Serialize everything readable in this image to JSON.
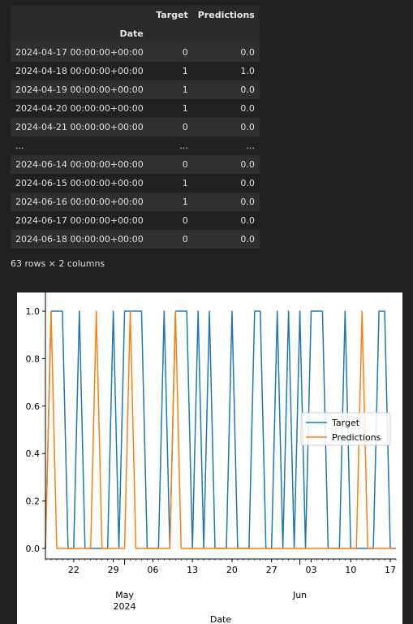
{
  "table": {
    "columns": [
      "Target",
      "Predictions"
    ],
    "index_name": "Date",
    "rows": [
      {
        "date": "2024-04-17 00:00:00+00:00",
        "target": "0",
        "pred": "0.0"
      },
      {
        "date": "2024-04-18 00:00:00+00:00",
        "target": "1",
        "pred": "1.0"
      },
      {
        "date": "2024-04-19 00:00:00+00:00",
        "target": "1",
        "pred": "0.0"
      },
      {
        "date": "2024-04-20 00:00:00+00:00",
        "target": "1",
        "pred": "0.0"
      },
      {
        "date": "2024-04-21 00:00:00+00:00",
        "target": "0",
        "pred": "0.0"
      },
      {
        "date": "...",
        "target": "...",
        "pred": "..."
      },
      {
        "date": "2024-06-14 00:00:00+00:00",
        "target": "0",
        "pred": "0.0"
      },
      {
        "date": "2024-06-15 00:00:00+00:00",
        "target": "1",
        "pred": "0.0"
      },
      {
        "date": "2024-06-16 00:00:00+00:00",
        "target": "1",
        "pred": "0.0"
      },
      {
        "date": "2024-06-17 00:00:00+00:00",
        "target": "0",
        "pred": "0.0"
      },
      {
        "date": "2024-06-18 00:00:00+00:00",
        "target": "0",
        "pred": "0.0"
      }
    ],
    "shape": "63 rows × 2 columns"
  },
  "chart_data": {
    "type": "line",
    "x": [
      "2024-04-17",
      "2024-04-18",
      "2024-04-19",
      "2024-04-20",
      "2024-04-21",
      "2024-04-22",
      "2024-04-23",
      "2024-04-24",
      "2024-04-25",
      "2024-04-26",
      "2024-04-27",
      "2024-04-28",
      "2024-04-29",
      "2024-04-30",
      "2024-05-01",
      "2024-05-02",
      "2024-05-03",
      "2024-05-04",
      "2024-05-05",
      "2024-05-06",
      "2024-05-07",
      "2024-05-08",
      "2024-05-09",
      "2024-05-10",
      "2024-05-11",
      "2024-05-12",
      "2024-05-13",
      "2024-05-14",
      "2024-05-15",
      "2024-05-16",
      "2024-05-17",
      "2024-05-18",
      "2024-05-19",
      "2024-05-20",
      "2024-05-21",
      "2024-05-22",
      "2024-05-23",
      "2024-05-24",
      "2024-05-25",
      "2024-05-26",
      "2024-05-27",
      "2024-05-28",
      "2024-05-29",
      "2024-05-30",
      "2024-05-31",
      "2024-06-01",
      "2024-06-02",
      "2024-06-03",
      "2024-06-04",
      "2024-06-05",
      "2024-06-06",
      "2024-06-07",
      "2024-06-08",
      "2024-06-09",
      "2024-06-10",
      "2024-06-11",
      "2024-06-12",
      "2024-06-13",
      "2024-06-14",
      "2024-06-15",
      "2024-06-16",
      "2024-06-17",
      "2024-06-18"
    ],
    "series": [
      {
        "name": "Target",
        "color": "#1f77b4",
        "values": [
          0,
          1,
          1,
          1,
          0,
          0,
          1,
          0,
          0,
          0,
          0,
          0,
          1,
          0,
          1,
          1,
          1,
          1,
          0,
          0,
          0,
          1,
          0,
          1,
          1,
          1,
          0,
          1,
          0,
          1,
          0,
          0,
          0,
          1,
          0,
          0,
          0,
          1,
          1,
          0,
          0,
          1,
          0,
          1,
          0,
          1,
          0,
          1,
          1,
          1,
          0,
          0,
          0,
          1,
          0,
          0,
          0,
          0,
          0,
          1,
          1,
          0,
          0
        ]
      },
      {
        "name": "Predictions",
        "color": "#ff7f0e",
        "values": [
          0,
          1,
          0,
          0,
          0,
          0,
          0,
          0,
          0,
          1,
          0,
          0,
          0,
          0,
          0,
          1,
          0,
          0,
          0,
          0,
          0,
          0,
          0,
          1,
          0,
          0,
          0,
          0,
          0,
          0,
          0,
          0,
          0,
          0,
          0,
          0,
          0,
          0,
          0,
          0,
          0,
          0,
          0,
          0,
          0,
          0,
          0,
          0,
          0,
          0,
          0,
          0,
          0,
          0,
          0,
          0,
          1,
          0,
          0,
          0,
          0,
          0,
          0
        ]
      }
    ],
    "xlabel": "Date",
    "ylim": [
      0.0,
      1.0
    ],
    "yticks": [
      "0.0",
      "0.2",
      "0.4",
      "0.6",
      "0.8",
      "1.0"
    ],
    "xtick_labels": [
      {
        "date": "2024-04-22",
        "label": "22"
      },
      {
        "date": "2024-04-29",
        "label": "29"
      },
      {
        "date": "2024-05-06",
        "label": "06"
      },
      {
        "date": "2024-05-13",
        "label": "13"
      },
      {
        "date": "2024-05-20",
        "label": "20"
      },
      {
        "date": "2024-05-27",
        "label": "27"
      },
      {
        "date": "2024-06-03",
        "label": "03"
      },
      {
        "date": "2024-06-10",
        "label": "10"
      },
      {
        "date": "2024-06-17",
        "label": "17"
      }
    ],
    "month_labels": [
      {
        "date": "2024-05-01",
        "label": "May",
        "sub": "2024"
      },
      {
        "date": "2024-06-01",
        "label": "Jun",
        "sub": ""
      }
    ],
    "legend": "center-right"
  }
}
